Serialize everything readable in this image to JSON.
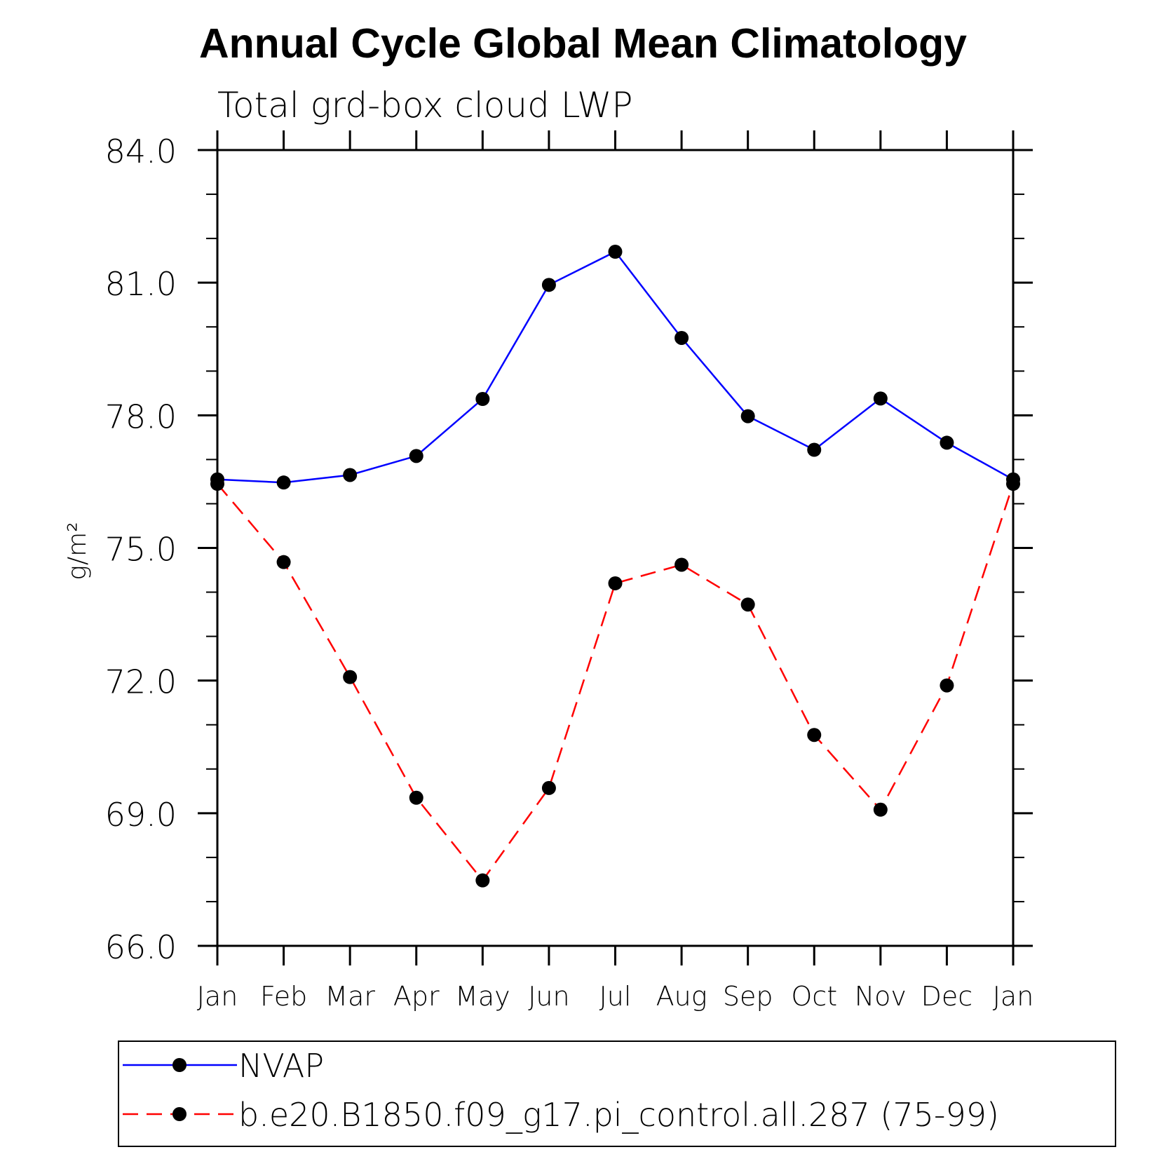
{
  "chart_data": {
    "type": "line",
    "title": "Annual Cycle Global Mean Climatology",
    "subtitle": "Total grd-box cloud LWP",
    "xlabel": "",
    "ylabel": "g/m²",
    "categories": [
      "Jan",
      "Feb",
      "Mar",
      "Apr",
      "May",
      "Jun",
      "Jul",
      "Aug",
      "Sep",
      "Oct",
      "Nov",
      "Dec",
      "Jan"
    ],
    "ylim": [
      66.0,
      84.0
    ],
    "yticks": [
      "66.0",
      "69.0",
      "72.0",
      "75.0",
      "78.0",
      "81.0",
      "84.0"
    ],
    "grid": false,
    "legend_position": "bottom",
    "series": [
      {
        "name": "NVAP",
        "color": "#0000ff",
        "dash": "solid",
        "marker": "filled-circle",
        "values": [
          76.55,
          76.48,
          76.65,
          77.08,
          78.37,
          80.95,
          81.7,
          79.75,
          77.98,
          77.22,
          78.38,
          77.38,
          76.55
        ]
      },
      {
        "name": "b.e20.B1850.f09_g17.pi_control.all.287 (75-99)",
        "color": "#ff0000",
        "dash": "dashed",
        "marker": "filled-circle",
        "values": [
          76.45,
          74.68,
          72.08,
          69.35,
          67.48,
          69.57,
          74.2,
          74.62,
          73.72,
          70.77,
          69.08,
          71.89,
          76.45
        ]
      }
    ]
  }
}
